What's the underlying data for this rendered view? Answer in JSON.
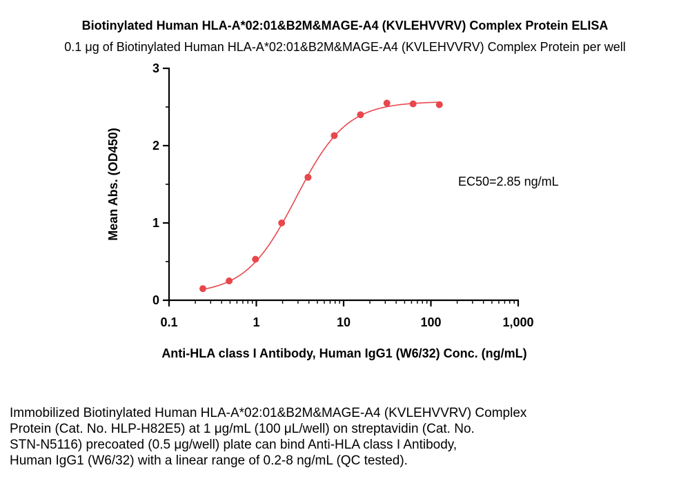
{
  "chart_data": {
    "type": "scatter",
    "title": "Biotinylated Human HLA-A*02:01&B2M&MAGE-A4 (KVLEHVVRV) Complex Protein ELISA",
    "subtitle": "0.1 μg of Biotinylated Human HLA-A*02:01&B2M&MAGE-A4 (KVLEHVVRV) Complex Protein per well",
    "xlabel": "Anti-HLA class I Antibody, Human IgG1 (W6/32) Conc. (ng/mL)",
    "ylabel": "Mean Abs. (OD450)",
    "x_scale": "log",
    "xlim": [
      0.1,
      1000
    ],
    "ylim": [
      0,
      3
    ],
    "x_ticks": [
      0.1,
      1,
      10,
      100,
      1000
    ],
    "x_tick_labels": [
      "0.1",
      "1",
      "10",
      "100",
      "1,000"
    ],
    "y_ticks": [
      0,
      1,
      2,
      3
    ],
    "y_tick_labels": [
      "0",
      "1",
      "2",
      "3"
    ],
    "grid": false,
    "color": "#e8474c",
    "annotation": "EC50=2.85 ng/mL",
    "points": [
      {
        "x": 0.244,
        "y": 0.15
      },
      {
        "x": 0.488,
        "y": 0.25
      },
      {
        "x": 0.977,
        "y": 0.53
      },
      {
        "x": 1.95,
        "y": 1.0
      },
      {
        "x": 3.91,
        "y": 1.59
      },
      {
        "x": 7.81,
        "y": 2.13
      },
      {
        "x": 15.6,
        "y": 2.4
      },
      {
        "x": 31.3,
        "y": 2.55
      },
      {
        "x": 62.5,
        "y": 2.54
      },
      {
        "x": 125,
        "y": 2.53
      }
    ],
    "fit": {
      "model": "4PL",
      "bottom": 0.08,
      "top": 2.57,
      "ec50": 2.85,
      "hill": 1.5
    }
  },
  "caption_lines": [
    "Immobilized Biotinylated Human HLA-A*02:01&B2M&MAGE-A4 (KVLEHVVRV) Complex",
    "Protein (Cat. No. HLP-H82E5) at 1 μg/mL (100 μL/well) on streptavidin (Cat. No.",
    "STN-N5116) precoated (0.5 μg/well) plate can bind Anti-HLA class I Antibody,",
    "Human IgG1 (W6/32) with a linear range of 0.2-8 ng/mL (QC tested)."
  ]
}
